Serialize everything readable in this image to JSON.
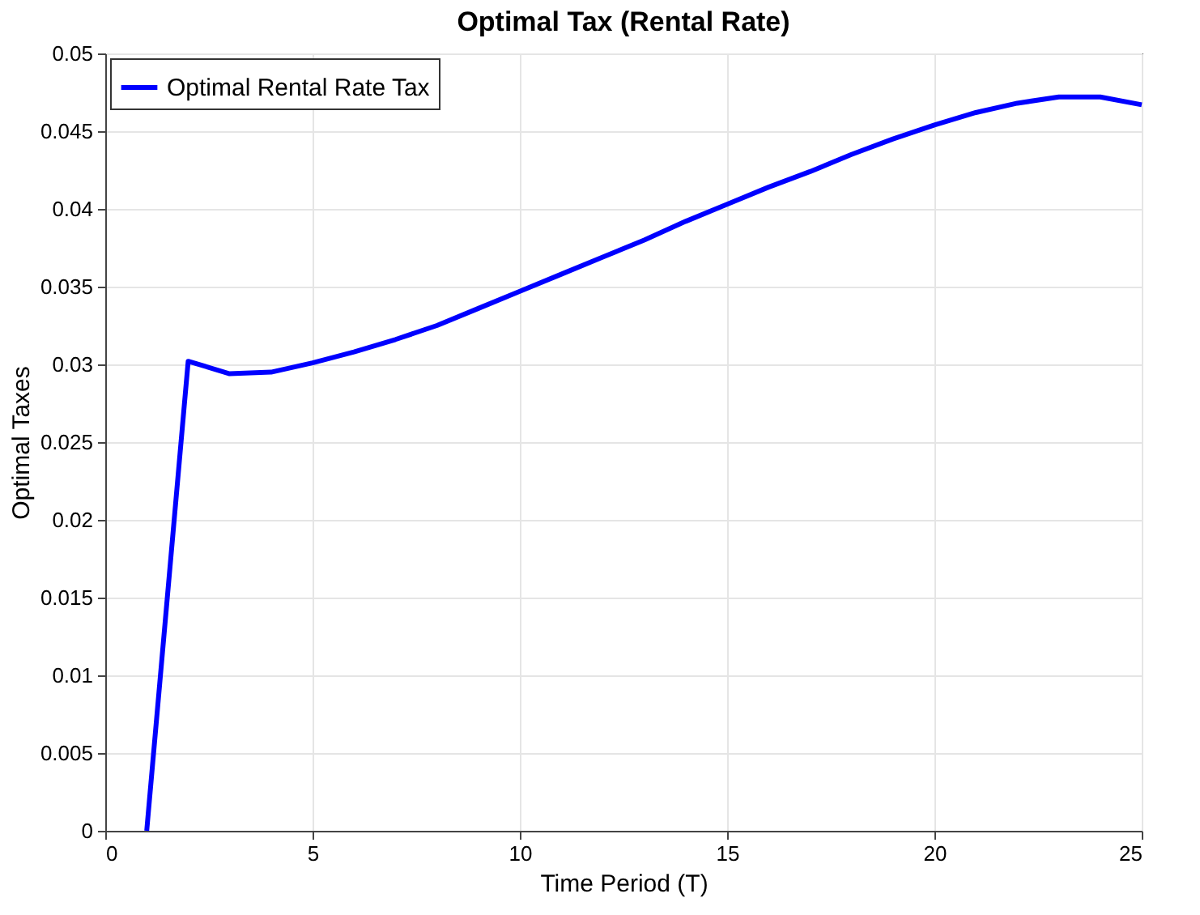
{
  "chart_data": {
    "type": "line",
    "title": "Optimal Tax (Rental Rate)",
    "xlabel": "Time Period (T)",
    "ylabel": "Optimal Taxes",
    "x": [
      1,
      2,
      3,
      4,
      5,
      6,
      7,
      8,
      9,
      10,
      11,
      12,
      13,
      14,
      15,
      16,
      17,
      18,
      19,
      20,
      21,
      22,
      23,
      24,
      25
    ],
    "series": [
      {
        "name": "Optimal Rental Rate Tax",
        "color": "#0000ff",
        "values": [
          0,
          0.0302,
          0.0294,
          0.0295,
          0.0301,
          0.0308,
          0.0316,
          0.0325,
          0.0336,
          0.0347,
          0.0358,
          0.0369,
          0.038,
          0.0392,
          0.0403,
          0.0414,
          0.0424,
          0.0435,
          0.0445,
          0.0454,
          0.0462,
          0.0468,
          0.0472,
          0.0472,
          0.0467
        ]
      }
    ],
    "xlim": [
      0,
      25
    ],
    "xticks": [
      0,
      5,
      10,
      15,
      20,
      25
    ],
    "ylim": [
      0,
      0.05
    ],
    "yticks": [
      0,
      0.005,
      0.01,
      0.015,
      0.02,
      0.025,
      0.03,
      0.035,
      0.04,
      0.045,
      0.05
    ],
    "grid": true,
    "legend": "top left",
    "marker": "none",
    "line_style": "solid"
  }
}
